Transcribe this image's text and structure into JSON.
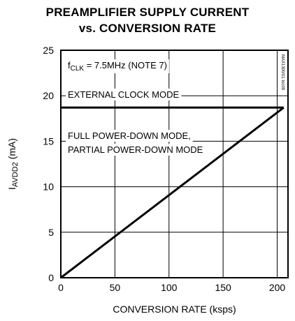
{
  "chart_data": {
    "type": "line",
    "title_line1": "PREAMPLIFIER SUPPLY CURRENT",
    "title_line2": "vs. CONVERSION RATE",
    "xlabel": "CONVERSION RATE (ksps)",
    "ylabel_main": "I",
    "ylabel_sub": "AVDD2",
    "ylabel_unit": " (mA)",
    "xlim": [
      0,
      210
    ],
    "ylim": [
      0,
      25
    ],
    "x_ticks": [
      0,
      50,
      100,
      150,
      200
    ],
    "y_ticks": [
      0,
      5,
      10,
      15,
      20,
      25
    ],
    "grid": true,
    "series": [
      {
        "name": "EXTERNAL CLOCK MODE",
        "x": [
          0,
          206
        ],
        "y": [
          18.7,
          18.7
        ]
      },
      {
        "name": "FULL POWER-DOWN MODE, PARTIAL POWER-DOWN MODE",
        "x": [
          0,
          206
        ],
        "y": [
          0,
          18.7
        ]
      }
    ],
    "annotations": {
      "fclk_main": "f",
      "fclk_sub": "CLK",
      "fclk_rest": " = 7.5MHz (NOTE 7)",
      "external": "EXTERNAL CLOCK MODE",
      "fullpd_line1": "FULL POWER-DOWN MODE,",
      "fullpd_line2": "PARTIAL POWER-DOWN MODE"
    },
    "side_code": "MAX1300/01 toc09"
  }
}
